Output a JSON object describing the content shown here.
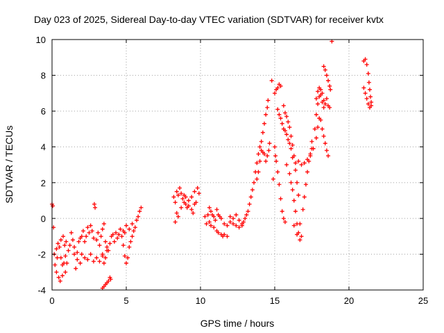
{
  "chart_data": {
    "type": "scatter",
    "title": "Day 023 of 2025, Sidereal Day-to-day VTEC variation (SDTVAR) for receiver kvtx",
    "xlabel": "GPS time / hours",
    "ylabel": "SDTVAR / TECUs",
    "xlim": [
      0,
      25
    ],
    "ylim": [
      -4,
      10
    ],
    "xticks": [
      "0",
      "5",
      "10",
      "15",
      "20",
      "25"
    ],
    "yticks": [
      "-4",
      "-2",
      "0",
      "2",
      "4",
      "6",
      "8",
      "10"
    ],
    "grid": true,
    "marker": "+",
    "colors": {
      "series": "#ff0000",
      "grid": "#a0a0a0",
      "axis": "#000000"
    },
    "series": [
      {
        "name": "SDTVAR",
        "points": [
          [
            0.0,
            0.8
          ],
          [
            0.05,
            0.7
          ],
          [
            0.1,
            -0.5
          ],
          [
            0.15,
            -2.0
          ],
          [
            0.2,
            -2.6
          ],
          [
            0.3,
            -3.0
          ],
          [
            0.35,
            -2.2
          ],
          [
            0.45,
            -3.3
          ],
          [
            0.55,
            -3.5
          ],
          [
            0.7,
            -3.2
          ],
          [
            0.8,
            -2.5
          ],
          [
            0.9,
            -3.0
          ],
          [
            0.3,
            -1.7
          ],
          [
            0.4,
            -1.4
          ],
          [
            0.5,
            -1.6
          ],
          [
            0.6,
            -1.2
          ],
          [
            0.75,
            -1.0
          ],
          [
            0.85,
            -1.5
          ],
          [
            0.95,
            -1.3
          ],
          [
            0.6,
            -2.2
          ],
          [
            0.7,
            -2.6
          ],
          [
            0.9,
            -2.1
          ],
          [
            1.0,
            -2.5
          ],
          [
            1.1,
            -1.8
          ],
          [
            1.2,
            -1.5
          ],
          [
            1.3,
            -0.8
          ],
          [
            1.4,
            -1.2
          ],
          [
            1.5,
            -2.0
          ],
          [
            1.6,
            -2.8
          ],
          [
            1.7,
            -1.9
          ],
          [
            1.8,
            -1.3
          ],
          [
            1.9,
            -1.1
          ],
          [
            1.5,
            -1.6
          ],
          [
            1.7,
            -2.3
          ],
          [
            1.9,
            -2.5
          ],
          [
            2.0,
            -1.0
          ],
          [
            2.1,
            -0.7
          ],
          [
            2.2,
            -1.3
          ],
          [
            2.3,
            -1.0
          ],
          [
            2.4,
            -0.5
          ],
          [
            2.5,
            -0.8
          ],
          [
            2.6,
            -0.4
          ],
          [
            2.0,
            -2.0
          ],
          [
            2.2,
            -2.2
          ],
          [
            2.4,
            -2.3
          ],
          [
            2.6,
            -2.0
          ],
          [
            2.8,
            -2.4
          ],
          [
            3.0,
            -2.2
          ],
          [
            3.2,
            -2.4
          ],
          [
            3.4,
            -2.1
          ],
          [
            2.7,
            -0.7
          ],
          [
            2.8,
            -1.1
          ],
          [
            2.85,
            0.8
          ],
          [
            2.9,
            0.6
          ],
          [
            3.0,
            -1.2
          ],
          [
            3.1,
            -0.8
          ],
          [
            3.2,
            -1.5
          ],
          [
            3.3,
            -1.0
          ],
          [
            3.4,
            -0.6
          ],
          [
            3.5,
            -0.3
          ],
          [
            3.6,
            -1.3
          ],
          [
            3.7,
            -1.6
          ],
          [
            3.8,
            -1.8
          ],
          [
            3.9,
            -1.4
          ],
          [
            4.0,
            -1.0
          ],
          [
            4.1,
            -0.9
          ],
          [
            3.4,
            -3.9
          ],
          [
            3.5,
            -3.8
          ],
          [
            3.6,
            -3.7
          ],
          [
            3.7,
            -3.6
          ],
          [
            3.8,
            -3.5
          ],
          [
            3.9,
            -3.3
          ],
          [
            3.95,
            -3.4
          ],
          [
            3.4,
            -2.0
          ],
          [
            3.5,
            -2.5
          ],
          [
            3.6,
            -2.2
          ],
          [
            3.7,
            -1.8
          ],
          [
            4.2,
            -1.3
          ],
          [
            4.3,
            -0.8
          ],
          [
            4.4,
            -1.1
          ],
          [
            4.5,
            -0.9
          ],
          [
            4.6,
            -0.6
          ],
          [
            4.7,
            -1.0
          ],
          [
            4.8,
            -0.7
          ],
          [
            4.9,
            -0.8
          ],
          [
            4.8,
            -1.5
          ],
          [
            4.9,
            -2.1
          ],
          [
            5.0,
            -2.5
          ],
          [
            5.1,
            -2.2
          ],
          [
            5.2,
            -1.6
          ],
          [
            5.3,
            -1.3
          ],
          [
            5.4,
            -1.0
          ],
          [
            5.5,
            -0.7
          ],
          [
            5.0,
            -0.4
          ],
          [
            5.2,
            -0.6
          ],
          [
            5.4,
            -0.3
          ],
          [
            5.6,
            -0.5
          ],
          [
            5.7,
            -0.1
          ],
          [
            5.8,
            0.1
          ],
          [
            5.9,
            0.4
          ],
          [
            6.0,
            0.6
          ],
          [
            8.2,
            1.2
          ],
          [
            8.3,
            0.9
          ],
          [
            8.4,
            1.5
          ],
          [
            8.5,
            1.3
          ],
          [
            8.6,
            1.7
          ],
          [
            8.7,
            1.4
          ],
          [
            8.8,
            1.1
          ],
          [
            8.9,
            0.9
          ],
          [
            9.0,
            0.8
          ],
          [
            9.1,
            0.6
          ],
          [
            9.2,
            0.7
          ],
          [
            8.3,
            -0.2
          ],
          [
            8.4,
            0.3
          ],
          [
            8.5,
            0.1
          ],
          [
            8.7,
            0.6
          ],
          [
            8.9,
            1.3
          ],
          [
            9.0,
            1.2
          ],
          [
            9.2,
            1.0
          ],
          [
            9.4,
            1.2
          ],
          [
            9.6,
            1.5
          ],
          [
            9.8,
            1.7
          ],
          [
            9.9,
            1.4
          ],
          [
            9.4,
            0.5
          ],
          [
            9.5,
            0.3
          ],
          [
            9.6,
            0.8
          ],
          [
            9.7,
            0.9
          ],
          [
            10.3,
            0.1
          ],
          [
            10.4,
            -0.3
          ],
          [
            10.5,
            0.2
          ],
          [
            10.6,
            0.6
          ],
          [
            10.7,
            0.4
          ],
          [
            10.8,
            0.2
          ],
          [
            10.9,
            0.1
          ],
          [
            11.0,
            -0.1
          ],
          [
            11.1,
            0.5
          ],
          [
            11.2,
            0.2
          ],
          [
            11.3,
            0.1
          ],
          [
            11.4,
            0.0
          ],
          [
            10.6,
            -0.2
          ],
          [
            10.7,
            -0.4
          ],
          [
            10.9,
            -0.5
          ],
          [
            11.1,
            -0.7
          ],
          [
            11.2,
            -0.8
          ],
          [
            11.4,
            -0.9
          ],
          [
            11.5,
            -1.0
          ],
          [
            11.6,
            -0.9
          ],
          [
            11.8,
            -1.0
          ],
          [
            11.6,
            -0.3
          ],
          [
            11.8,
            -0.4
          ],
          [
            12.0,
            -0.2
          ],
          [
            12.2,
            -0.3
          ],
          [
            12.4,
            -0.4
          ],
          [
            12.6,
            -0.1
          ],
          [
            12.8,
            -0.3
          ],
          [
            12.9,
            -0.2
          ],
          [
            13.0,
            0.0
          ],
          [
            12.0,
            0.1
          ],
          [
            12.2,
            0.0
          ],
          [
            12.4,
            0.2
          ],
          [
            12.6,
            -0.5
          ],
          [
            12.8,
            -0.4
          ],
          [
            13.1,
            0.2
          ],
          [
            13.2,
            0.4
          ],
          [
            13.3,
            0.8
          ],
          [
            13.4,
            1.2
          ],
          [
            13.5,
            1.6
          ],
          [
            13.6,
            2.0
          ],
          [
            13.7,
            2.6
          ],
          [
            13.8,
            3.1
          ],
          [
            13.9,
            3.6
          ],
          [
            14.0,
            4.0
          ],
          [
            14.1,
            4.3
          ],
          [
            14.2,
            4.8
          ],
          [
            14.3,
            5.3
          ],
          [
            14.4,
            5.8
          ],
          [
            14.5,
            6.2
          ],
          [
            14.55,
            6.6
          ],
          [
            13.8,
            2.2
          ],
          [
            13.9,
            2.6
          ],
          [
            14.0,
            3.2
          ],
          [
            14.1,
            3.8
          ],
          [
            14.2,
            3.7
          ],
          [
            14.3,
            3.6
          ],
          [
            14.4,
            3.2
          ],
          [
            14.5,
            3.5
          ],
          [
            14.6,
            3.8
          ],
          [
            14.65,
            4.2
          ],
          [
            14.8,
            7.7
          ],
          [
            14.9,
            2.2
          ],
          [
            15.0,
            4.0
          ],
          [
            15.05,
            3.5
          ],
          [
            15.1,
            3.2
          ],
          [
            15.2,
            2.6
          ],
          [
            15.3,
            1.9
          ],
          [
            15.4,
            1.1
          ],
          [
            15.5,
            0.4
          ],
          [
            15.6,
            0.0
          ],
          [
            15.7,
            -0.2
          ],
          [
            15.0,
            7.0
          ],
          [
            15.1,
            7.2
          ],
          [
            15.2,
            7.3
          ],
          [
            15.3,
            7.5
          ],
          [
            15.4,
            7.4
          ],
          [
            15.2,
            6.1
          ],
          [
            15.3,
            5.8
          ],
          [
            15.4,
            5.6
          ],
          [
            15.5,
            5.3
          ],
          [
            15.6,
            5.0
          ],
          [
            15.7,
            4.9
          ],
          [
            15.8,
            4.7
          ],
          [
            15.9,
            4.4
          ],
          [
            16.0,
            4.2
          ],
          [
            16.1,
            3.9
          ],
          [
            16.2,
            3.4
          ],
          [
            15.6,
            6.3
          ],
          [
            15.7,
            5.9
          ],
          [
            15.8,
            5.7
          ],
          [
            15.9,
            5.4
          ],
          [
            16.0,
            5.1
          ],
          [
            16.1,
            4.6
          ],
          [
            16.2,
            4.1
          ],
          [
            16.3,
            3.5
          ],
          [
            16.4,
            2.7
          ],
          [
            16.5,
            2.0
          ],
          [
            16.6,
            1.3
          ],
          [
            15.8,
            3.0
          ],
          [
            16.0,
            2.5
          ],
          [
            16.1,
            2.0
          ],
          [
            16.2,
            1.6
          ],
          [
            16.3,
            1.0
          ],
          [
            16.4,
            0.4
          ],
          [
            16.5,
            -0.3
          ],
          [
            16.6,
            -0.8
          ],
          [
            16.7,
            -1.2
          ],
          [
            16.8,
            -1.0
          ],
          [
            16.3,
            -0.4
          ],
          [
            16.5,
            -0.9
          ],
          [
            16.7,
            -0.3
          ],
          [
            16.9,
            0.5
          ],
          [
            17.0,
            1.2
          ],
          [
            17.1,
            1.9
          ],
          [
            17.2,
            2.6
          ],
          [
            17.3,
            3.2
          ],
          [
            17.4,
            3.6
          ],
          [
            17.5,
            3.9
          ],
          [
            16.4,
            3.1
          ],
          [
            16.6,
            3.2
          ],
          [
            16.8,
            3.0
          ],
          [
            17.0,
            3.1
          ],
          [
            17.2,
            3.3
          ],
          [
            17.4,
            3.5
          ],
          [
            17.6,
            3.9
          ],
          [
            17.8,
            4.5
          ],
          [
            17.9,
            5.1
          ],
          [
            18.0,
            5.6
          ],
          [
            17.5,
            4.3
          ],
          [
            17.7,
            5.0
          ],
          [
            17.8,
            5.8
          ],
          [
            17.9,
            6.4
          ],
          [
            18.0,
            6.8
          ],
          [
            18.1,
            7.2
          ],
          [
            18.2,
            7.0
          ],
          [
            18.3,
            6.6
          ],
          [
            17.8,
            6.7
          ],
          [
            17.9,
            7.1
          ],
          [
            18.0,
            7.3
          ],
          [
            18.1,
            6.9
          ],
          [
            18.2,
            6.5
          ],
          [
            18.3,
            6.2
          ],
          [
            18.4,
            6.4
          ],
          [
            18.5,
            6.7
          ],
          [
            18.6,
            6.3
          ],
          [
            18.7,
            6.2
          ],
          [
            18.1,
            5.5
          ],
          [
            18.2,
            5.0
          ],
          [
            18.3,
            4.6
          ],
          [
            18.4,
            4.2
          ],
          [
            18.5,
            3.8
          ],
          [
            18.6,
            3.5
          ],
          [
            18.3,
            8.5
          ],
          [
            18.4,
            8.3
          ],
          [
            18.5,
            8.0
          ],
          [
            18.6,
            7.7
          ],
          [
            18.7,
            7.4
          ],
          [
            18.75,
            7.2
          ],
          [
            18.85,
            9.9
          ],
          [
            21.0,
            8.8
          ],
          [
            21.1,
            8.9
          ],
          [
            21.2,
            8.6
          ],
          [
            21.3,
            8.1
          ],
          [
            21.35,
            7.6
          ],
          [
            21.4,
            7.2
          ],
          [
            21.45,
            6.8
          ],
          [
            21.5,
            6.5
          ],
          [
            21.0,
            7.3
          ],
          [
            21.1,
            7.0
          ],
          [
            21.2,
            6.7
          ],
          [
            21.3,
            6.4
          ],
          [
            21.4,
            6.2
          ],
          [
            21.5,
            6.3
          ]
        ]
      }
    ]
  }
}
